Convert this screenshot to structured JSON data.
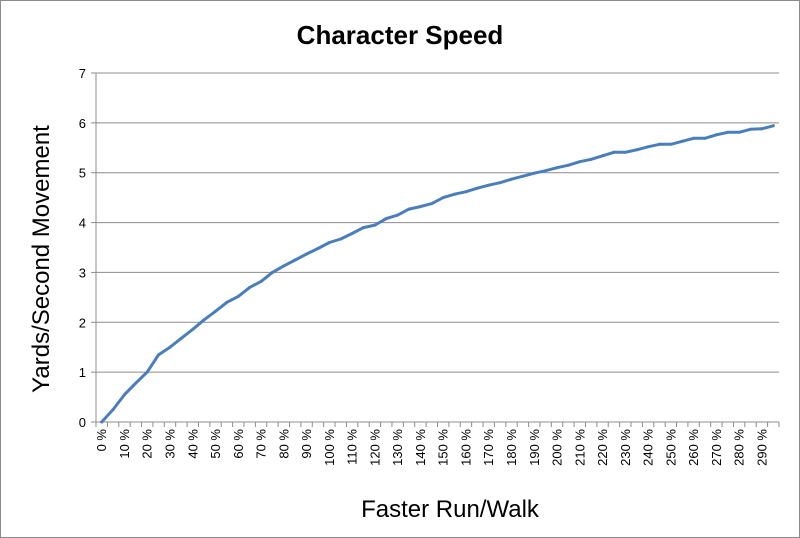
{
  "chart_data": {
    "type": "line",
    "title": "Character Speed",
    "xlabel": "Faster Run/Walk",
    "ylabel": "Yards/Second Movement",
    "ylim": [
      0,
      7
    ],
    "yticks": [
      "0",
      "1",
      "2",
      "3",
      "4",
      "5",
      "6",
      "7"
    ],
    "grid": true,
    "legend": "none",
    "colors": {
      "line": "#4a7ebb",
      "grid": "#8c8c8c",
      "axis": "#8c8c8c"
    },
    "categories": [
      "0 %",
      "5 %",
      "10 %",
      "15 %",
      "20 %",
      "25 %",
      "30 %",
      "35 %",
      "40 %",
      "45 %",
      "50 %",
      "55 %",
      "60 %",
      "65 %",
      "70 %",
      "75 %",
      "80 %",
      "85 %",
      "90 %",
      "95 %",
      "100 %",
      "105 %",
      "110 %",
      "115 %",
      "120 %",
      "125 %",
      "130 %",
      "135 %",
      "140 %",
      "145 %",
      "150 %",
      "155 %",
      "160 %",
      "165 %",
      "170 %",
      "175 %",
      "180 %",
      "185 %",
      "190 %",
      "195 %",
      "200 %",
      "205 %",
      "210 %",
      "215 %",
      "220 %",
      "225 %",
      "230 %",
      "235 %",
      "240 %",
      "245 %",
      "250 %",
      "255 %",
      "260 %",
      "265 %",
      "270 %",
      "275 %",
      "280 %",
      "285 %",
      "290 %",
      "295 %"
    ],
    "tick_labels": [
      "0 %",
      "10 %",
      "20 %",
      "30 %",
      "40 %",
      "50 %",
      "60 %",
      "70 %",
      "80 %",
      "90 %",
      "100 %",
      "110 %",
      "120 %",
      "130 %",
      "140 %",
      "150 %",
      "160 %",
      "170 %",
      "180 %",
      "190 %",
      "200 %",
      "210 %",
      "220 %",
      "230 %",
      "240 %",
      "250 %",
      "260 %",
      "270 %",
      "280 %",
      "290 %"
    ],
    "values": [
      0.0,
      0.25,
      0.55,
      0.78,
      1.0,
      1.35,
      1.5,
      1.68,
      1.86,
      2.05,
      2.22,
      2.4,
      2.52,
      2.7,
      2.82,
      3.0,
      3.13,
      3.25,
      3.37,
      3.48,
      3.6,
      3.67,
      3.78,
      3.9,
      3.95,
      4.08,
      4.15,
      4.27,
      4.32,
      4.38,
      4.5,
      4.57,
      4.62,
      4.69,
      4.75,
      4.8,
      4.87,
      4.93,
      4.99,
      5.04,
      5.1,
      5.15,
      5.22,
      5.27,
      5.34,
      5.41,
      5.41,
      5.46,
      5.52,
      5.57,
      5.57,
      5.63,
      5.69,
      5.69,
      5.76,
      5.81,
      5.81,
      5.87,
      5.88,
      5.94
    ]
  }
}
